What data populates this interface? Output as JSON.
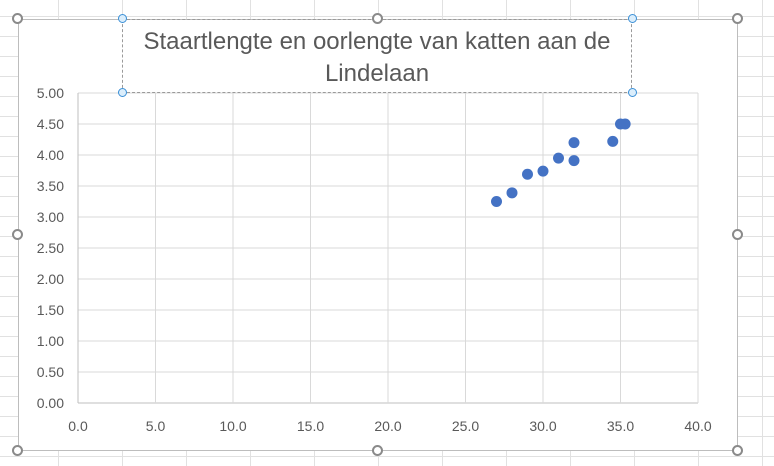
{
  "chart_data": {
    "type": "scatter",
    "title": "Staartlengte en oorlengte van katten aan de Lindelaan",
    "xlabel": "",
    "ylabel": "",
    "xlim": [
      0,
      40
    ],
    "ylim": [
      0,
      5
    ],
    "grid": true,
    "x_ticks": [
      "0.0",
      "5.0",
      "10.0",
      "15.0",
      "20.0",
      "25.0",
      "30.0",
      "35.0",
      "40.0"
    ],
    "y_ticks": [
      "0.00",
      "0.50",
      "1.00",
      "1.50",
      "2.00",
      "2.50",
      "3.00",
      "3.50",
      "4.00",
      "4.50",
      "5.00"
    ],
    "points": [
      {
        "x": 27.0,
        "y": 3.25
      },
      {
        "x": 28.0,
        "y": 3.39
      },
      {
        "x": 29.0,
        "y": 3.69
      },
      {
        "x": 30.0,
        "y": 3.74
      },
      {
        "x": 31.0,
        "y": 3.95
      },
      {
        "x": 32.0,
        "y": 4.2
      },
      {
        "x": 32.0,
        "y": 3.91
      },
      {
        "x": 34.5,
        "y": 4.22
      },
      {
        "x": 35.0,
        "y": 4.5
      },
      {
        "x": 35.3,
        "y": 4.5
      }
    ],
    "marker_color": "#4472c4",
    "grid_color": "#d9d9d9",
    "text_color": "#595959"
  }
}
